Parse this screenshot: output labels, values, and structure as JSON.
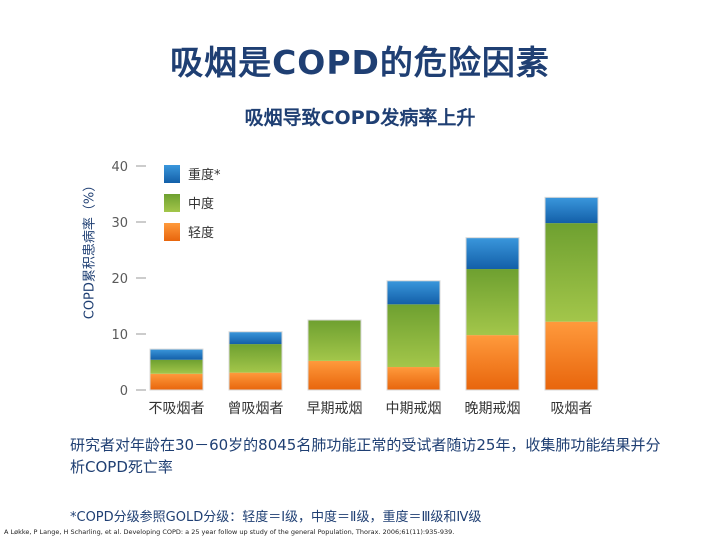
{
  "title": "吸烟是COPD的危险因素",
  "subtitle": "吸烟导致COPD发病率上升",
  "note": "研究者对年龄在30－60岁的8045名肺功能正常的受试者随访25年，收集肺功能结果并分析COPD死亡率",
  "footnote": "*COPD分级参照GOLD分级：轻度＝Ⅰ级，中度＝Ⅱ级，重度＝Ⅲ级和Ⅳ级",
  "citation": "A Løkke, P Lange, H Scharling, et al. Developing COPD: a 25 year follow up study of the general Population, Thorax. 2006;61(11):935-939.",
  "colors": {
    "severe": "#1f77c4",
    "moderate": "#8cb33c",
    "mild": "#f07b1c",
    "axis_text": "#5a5a5a",
    "grid": "#9a9a9a"
  },
  "chart_data": {
    "type": "bar",
    "stacked": true,
    "categories": [
      "不吸烟者",
      "曾吸烟者",
      "早期戒烟",
      "中期戒烟",
      "晚期戒烟",
      "吸烟者"
    ],
    "series": [
      {
        "name": "轻度",
        "color": "#f07b1c",
        "values": [
          2.9,
          3.1,
          5.2,
          4.1,
          9.8,
          12.2
        ]
      },
      {
        "name": "中度",
        "color": "#8cb33c",
        "values": [
          2.5,
          5.1,
          7.3,
          11.2,
          11.8,
          17.6
        ]
      },
      {
        "name": "重度*",
        "color": "#1f77c4",
        "values": [
          1.9,
          2.2,
          0,
          4.2,
          5.6,
          4.6
        ]
      }
    ],
    "legend_order": [
      "重度*",
      "中度",
      "轻度"
    ],
    "legend_position": "top-left",
    "ylabel": "COPD累积患病率（%）",
    "xlabel": "",
    "yticks": [
      0,
      10,
      20,
      30,
      40
    ],
    "ylim": [
      0,
      40
    ],
    "grid": false
  }
}
